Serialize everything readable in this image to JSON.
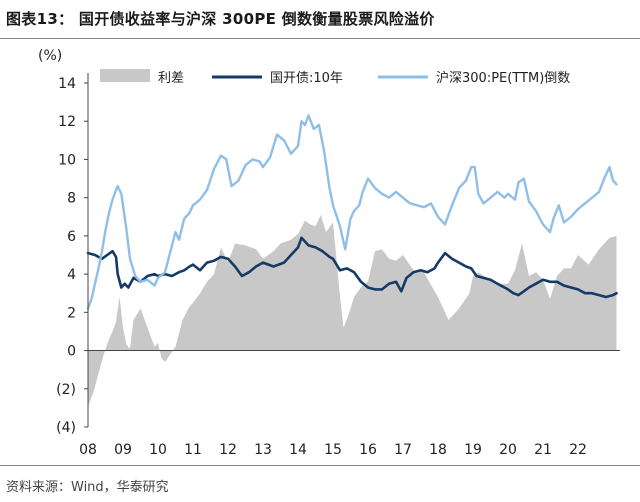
{
  "header": {
    "title": "图表13：   国开债收益率与沪深 300PE 倒数衡量股票风险溢价"
  },
  "footer": {
    "source": "资料来源：Wind，华泰研究"
  },
  "chart_data": {
    "type": "line",
    "unit_label": "(%)",
    "ylim": [
      -4,
      14
    ],
    "yticks": [
      {
        "value": 14,
        "label": "14"
      },
      {
        "value": 12,
        "label": "12"
      },
      {
        "value": 10,
        "label": "10"
      },
      {
        "value": 8,
        "label": "8"
      },
      {
        "value": 6,
        "label": "6"
      },
      {
        "value": 4,
        "label": "4"
      },
      {
        "value": 2,
        "label": "2"
      },
      {
        "value": 0,
        "label": "0"
      },
      {
        "value": -2,
        "label": "(2)"
      },
      {
        "value": -4,
        "label": "(4)"
      }
    ],
    "xlim": [
      2008.0,
      2023.2
    ],
    "xticks": [
      "08",
      "09",
      "10",
      "11",
      "12",
      "13",
      "14",
      "15",
      "16",
      "17",
      "18",
      "19",
      "20",
      "21",
      "22"
    ],
    "grid": false,
    "legend_position": "top",
    "colors": {
      "spread": "#c8c8c8",
      "bond": "#163a66",
      "earnings_yield": "#8fbfe8"
    },
    "series": [
      {
        "name": "利差",
        "render": "area",
        "x": [
          2008.0,
          2008.15,
          2008.3,
          2008.45,
          2008.6,
          2008.7,
          2008.8,
          2008.9,
          2009.0,
          2009.1,
          2009.2,
          2009.3,
          2009.5,
          2009.7,
          2009.9,
          2010.0,
          2010.1,
          2010.2,
          2010.35,
          2010.5,
          2010.7,
          2010.9,
          2011.0,
          2011.2,
          2011.4,
          2011.6,
          2011.8,
          2012.0,
          2012.2,
          2012.5,
          2012.8,
          2013.0,
          2013.3,
          2013.5,
          2013.8,
          2014.0,
          2014.2,
          2014.35,
          2014.5,
          2014.65,
          2014.8,
          2015.0,
          2015.2,
          2015.3,
          2015.45,
          2015.6,
          2015.8,
          2016.0,
          2016.2,
          2016.4,
          2016.6,
          2016.8,
          2017.0,
          2017.3,
          2017.6,
          2017.9,
          2018.0,
          2018.3,
          2018.6,
          2018.9,
          2019.0,
          2019.15,
          2019.4,
          2019.7,
          2020.0,
          2020.2,
          2020.4,
          2020.6,
          2020.8,
          2021.0,
          2021.2,
          2021.4,
          2021.6,
          2021.8,
          2022.0,
          2022.3,
          2022.6,
          2022.9,
          2023.1
        ],
        "values": [
          -2.9,
          -2.2,
          -1.2,
          -0.2,
          0.6,
          1.0,
          1.5,
          2.8,
          1.2,
          0.3,
          0.1,
          1.6,
          2.2,
          1.2,
          0.2,
          0.4,
          -0.4,
          -0.6,
          -0.2,
          0.2,
          1.6,
          2.3,
          2.5,
          3.0,
          3.6,
          4.0,
          5.4,
          4.6,
          5.6,
          5.5,
          5.3,
          4.8,
          5.2,
          5.6,
          5.8,
          6.1,
          6.8,
          6.6,
          6.5,
          7.1,
          6.2,
          6.7,
          2.8,
          1.2,
          1.9,
          2.8,
          3.3,
          3.6,
          5.2,
          5.3,
          4.8,
          4.7,
          5.0,
          4.2,
          4.1,
          3.1,
          2.8,
          1.6,
          2.2,
          3.0,
          3.9,
          4.1,
          3.8,
          3.5,
          3.5,
          4.2,
          5.6,
          3.9,
          4.1,
          3.7,
          2.7,
          3.9,
          4.3,
          4.3,
          5.0,
          4.5,
          5.3,
          5.9,
          6.0
        ]
      },
      {
        "name": "国开债:10年",
        "render": "line",
        "x": [
          2008.0,
          2008.2,
          2008.4,
          2008.55,
          2008.7,
          2008.8,
          2008.85,
          2008.95,
          2009.05,
          2009.15,
          2009.3,
          2009.5,
          2009.7,
          2009.9,
          2010.0,
          2010.2,
          2010.4,
          2010.6,
          2010.75,
          2010.9,
          2011.0,
          2011.2,
          2011.4,
          2011.6,
          2011.8,
          2012.0,
          2012.2,
          2012.4,
          2012.6,
          2012.8,
          2013.0,
          2013.3,
          2013.6,
          2013.8,
          2013.9,
          2014.0,
          2014.1,
          2014.2,
          2014.3,
          2014.5,
          2014.7,
          2014.9,
          2015.0,
          2015.2,
          2015.4,
          2015.6,
          2015.8,
          2016.0,
          2016.2,
          2016.4,
          2016.6,
          2016.8,
          2016.95,
          2017.1,
          2017.3,
          2017.5,
          2017.7,
          2017.9,
          2018.0,
          2018.2,
          2018.4,
          2018.6,
          2018.8,
          2018.95,
          2019.1,
          2019.3,
          2019.5,
          2019.7,
          2019.9,
          2020.0,
          2020.15,
          2020.3,
          2020.45,
          2020.6,
          2020.8,
          2021.0,
          2021.2,
          2021.4,
          2021.6,
          2021.8,
          2022.0,
          2022.2,
          2022.4,
          2022.6,
          2022.8,
          2023.0,
          2023.1
        ],
        "values": [
          5.1,
          5.0,
          4.8,
          5.0,
          5.2,
          4.9,
          4.0,
          3.3,
          3.5,
          3.3,
          3.8,
          3.6,
          3.9,
          4.0,
          3.9,
          4.0,
          3.9,
          4.1,
          4.2,
          4.4,
          4.5,
          4.2,
          4.6,
          4.7,
          4.9,
          4.8,
          4.4,
          3.9,
          4.1,
          4.4,
          4.6,
          4.4,
          4.6,
          5.0,
          5.2,
          5.4,
          5.9,
          5.7,
          5.5,
          5.4,
          5.2,
          4.9,
          4.8,
          4.2,
          4.3,
          4.1,
          3.6,
          3.3,
          3.2,
          3.2,
          3.5,
          3.6,
          3.1,
          3.8,
          4.1,
          4.2,
          4.1,
          4.3,
          4.6,
          5.1,
          4.8,
          4.6,
          4.4,
          4.3,
          3.9,
          3.8,
          3.7,
          3.5,
          3.3,
          3.2,
          3.0,
          2.9,
          3.1,
          3.3,
          3.5,
          3.7,
          3.6,
          3.6,
          3.4,
          3.3,
          3.2,
          3.0,
          3.0,
          2.9,
          2.8,
          2.9,
          3.0
        ]
      },
      {
        "name": "沪深300:PE(TTM)倒数",
        "render": "line",
        "x": [
          2008.0,
          2008.1,
          2008.2,
          2008.3,
          2008.4,
          2008.5,
          2008.6,
          2008.7,
          2008.8,
          2008.85,
          2008.95,
          2009.0,
          2009.1,
          2009.2,
          2009.35,
          2009.5,
          2009.7,
          2009.9,
          2010.0,
          2010.2,
          2010.4,
          2010.5,
          2010.6,
          2010.75,
          2010.9,
          2011.0,
          2011.2,
          2011.4,
          2011.6,
          2011.8,
          2011.95,
          2012.1,
          2012.3,
          2012.5,
          2012.7,
          2012.9,
          2013.0,
          2013.2,
          2013.4,
          2013.6,
          2013.8,
          2014.0,
          2014.1,
          2014.2,
          2014.3,
          2014.45,
          2014.6,
          2014.75,
          2014.9,
          2015.0,
          2015.2,
          2015.35,
          2015.5,
          2015.6,
          2015.75,
          2015.85,
          2016.0,
          2016.2,
          2016.4,
          2016.6,
          2016.8,
          2017.0,
          2017.2,
          2017.4,
          2017.6,
          2017.8,
          2018.0,
          2018.2,
          2018.4,
          2018.6,
          2018.8,
          2018.95,
          2019.05,
          2019.15,
          2019.3,
          2019.5,
          2019.7,
          2019.9,
          2020.0,
          2020.2,
          2020.3,
          2020.45,
          2020.6,
          2020.8,
          2021.0,
          2021.2,
          2021.3,
          2021.45,
          2021.6,
          2021.8,
          2022.0,
          2022.2,
          2022.4,
          2022.6,
          2022.75,
          2022.9,
          2023.0,
          2023.1
        ],
        "values": [
          2.2,
          2.7,
          3.5,
          4.3,
          5.2,
          6.3,
          7.2,
          7.9,
          8.4,
          8.6,
          8.2,
          7.6,
          6.3,
          4.8,
          3.9,
          3.6,
          3.7,
          3.4,
          3.8,
          4.1,
          5.5,
          6.2,
          5.8,
          6.9,
          7.2,
          7.6,
          7.9,
          8.4,
          9.5,
          10.2,
          10.0,
          8.6,
          8.9,
          9.7,
          10.0,
          9.9,
          9.6,
          10.1,
          11.3,
          11.0,
          10.3,
          10.7,
          12.0,
          11.8,
          12.3,
          11.6,
          11.8,
          10.4,
          8.5,
          7.6,
          6.5,
          5.3,
          6.9,
          7.3,
          7.6,
          8.3,
          9.0,
          8.5,
          8.2,
          8.0,
          8.3,
          8.0,
          7.7,
          7.6,
          7.5,
          7.7,
          7.0,
          6.6,
          7.6,
          8.5,
          8.9,
          9.6,
          9.6,
          8.2,
          7.7,
          8.0,
          8.3,
          8.0,
          8.2,
          7.9,
          8.8,
          9.0,
          7.8,
          7.3,
          6.6,
          6.2,
          6.9,
          7.6,
          6.7,
          7.0,
          7.4,
          7.7,
          8.0,
          8.3,
          9.0,
          9.6,
          8.9,
          8.7
        ]
      }
    ]
  }
}
